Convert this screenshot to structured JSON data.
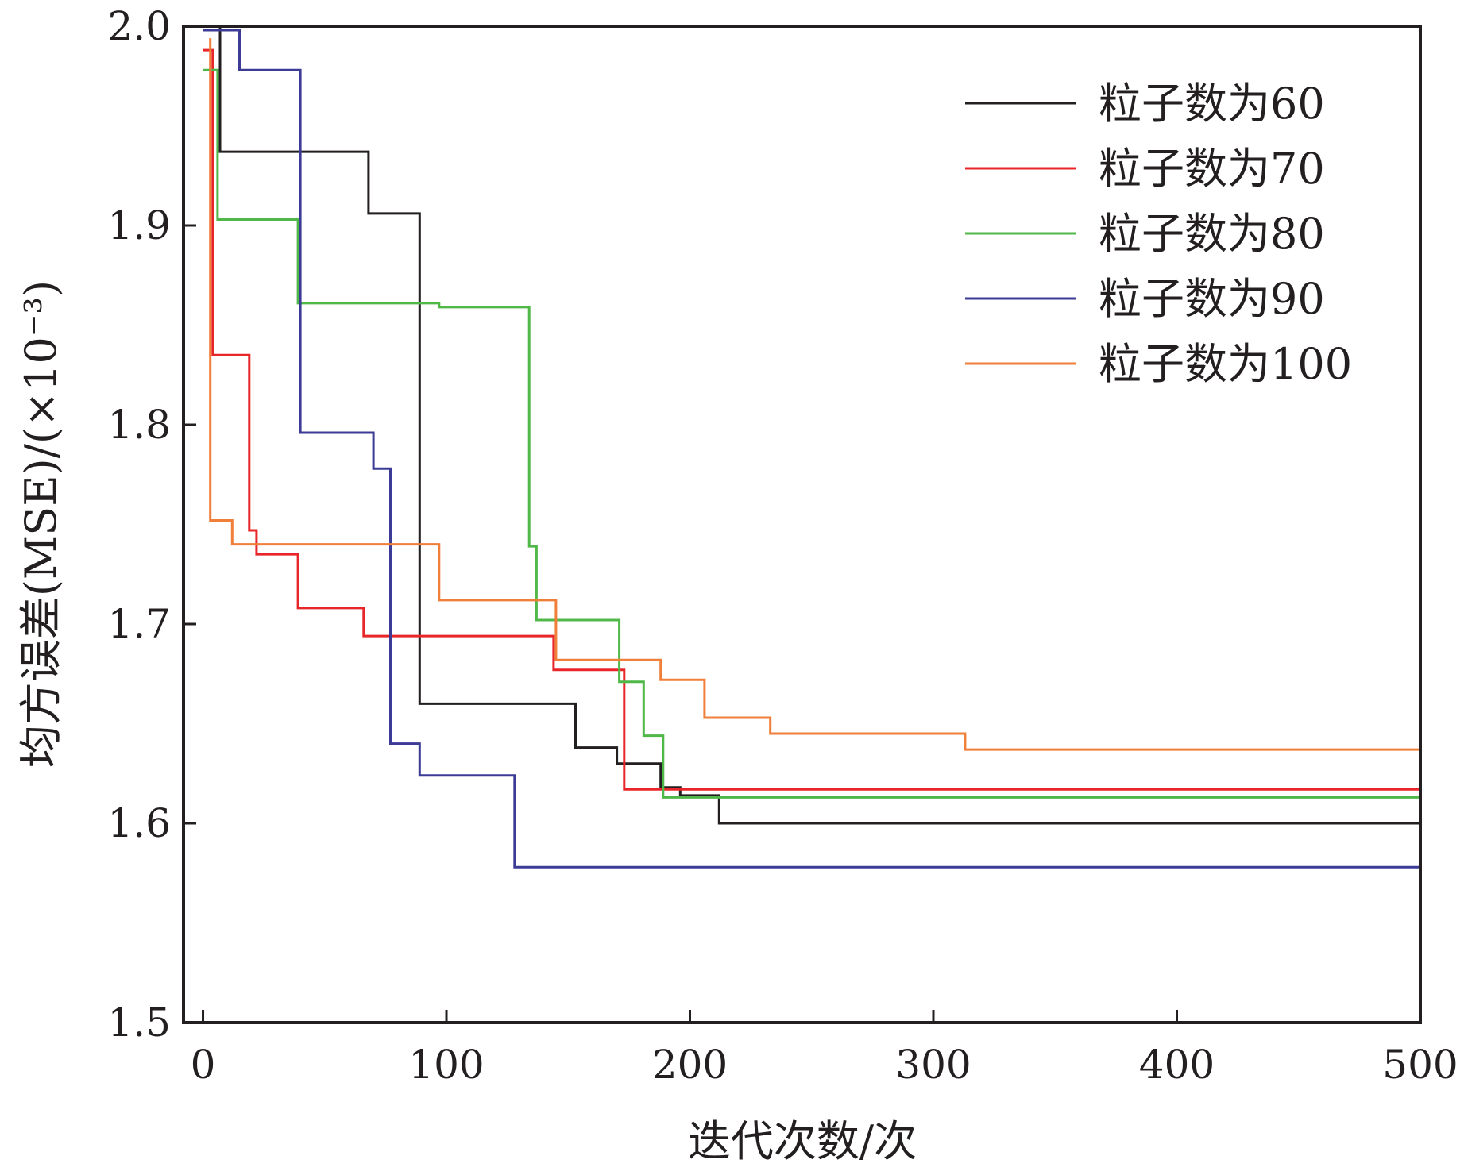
{
  "chart_data": {
    "type": "line",
    "step": true,
    "xlabel": "迭代次数/次",
    "ylabel": "均方误差(MSE)/(×10⁻³)",
    "xlim": [
      -8,
      500
    ],
    "ylim": [
      1.5,
      2.0
    ],
    "xticks": [
      0,
      100,
      200,
      300,
      400,
      500
    ],
    "xtick_labels": [
      "0",
      "100",
      "200",
      "300",
      "400",
      "500"
    ],
    "yticks": [
      1.5,
      1.6,
      1.7,
      1.8,
      1.9,
      2.0
    ],
    "ytick_labels": [
      "1.5",
      "1.6",
      "1.7",
      "1.8",
      "1.9",
      "2.0"
    ],
    "grid": false,
    "legend_position": "top-right",
    "series": [
      {
        "name": "粒子数为60",
        "color": "#231f20",
        "x": [
          7,
          7,
          68,
          68,
          89,
          89,
          153,
          153,
          170,
          170,
          188,
          188,
          196,
          196,
          212,
          212,
          500
        ],
        "y": [
          2.0,
          1.937,
          1.937,
          1.906,
          1.906,
          1.66,
          1.66,
          1.638,
          1.638,
          1.63,
          1.63,
          1.618,
          1.618,
          1.614,
          1.614,
          1.6,
          1.6
        ]
      },
      {
        "name": "粒子数为70",
        "color": "#e8262a",
        "x": [
          0,
          4,
          4,
          19,
          19,
          22,
          22,
          39,
          39,
          66,
          66,
          144,
          144,
          173,
          173,
          500
        ],
        "y": [
          1.988,
          1.988,
          1.835,
          1.835,
          1.747,
          1.747,
          1.735,
          1.735,
          1.708,
          1.708,
          1.694,
          1.694,
          1.677,
          1.677,
          1.617,
          1.617
        ]
      },
      {
        "name": "粒子数为80",
        "color": "#50b848",
        "x": [
          0,
          6,
          6,
          39,
          39,
          97,
          97,
          134,
          134,
          137,
          137,
          171,
          171,
          181,
          181,
          189,
          189,
          500
        ],
        "y": [
          1.978,
          1.978,
          1.903,
          1.903,
          1.861,
          1.861,
          1.859,
          1.859,
          1.739,
          1.739,
          1.702,
          1.702,
          1.671,
          1.671,
          1.644,
          1.644,
          1.613,
          1.613
        ]
      },
      {
        "name": "粒子数为90",
        "color": "#3c3b96",
        "x": [
          0,
          15,
          15,
          40,
          40,
          70,
          70,
          77,
          77,
          89,
          89,
          128,
          128,
          500
        ],
        "y": [
          1.998,
          1.998,
          1.978,
          1.978,
          1.796,
          1.796,
          1.778,
          1.778,
          1.64,
          1.64,
          1.624,
          1.624,
          1.578,
          1.578
        ]
      },
      {
        "name": "粒子数为100",
        "color": "#f07f3a",
        "x": [
          3,
          3,
          12,
          12,
          97,
          97,
          145,
          145,
          188,
          188,
          206,
          206,
          233,
          233,
          313,
          313,
          500
        ],
        "y": [
          1.994,
          1.752,
          1.752,
          1.74,
          1.74,
          1.712,
          1.712,
          1.682,
          1.682,
          1.672,
          1.672,
          1.653,
          1.653,
          1.645,
          1.645,
          1.637,
          1.637
        ]
      }
    ]
  }
}
